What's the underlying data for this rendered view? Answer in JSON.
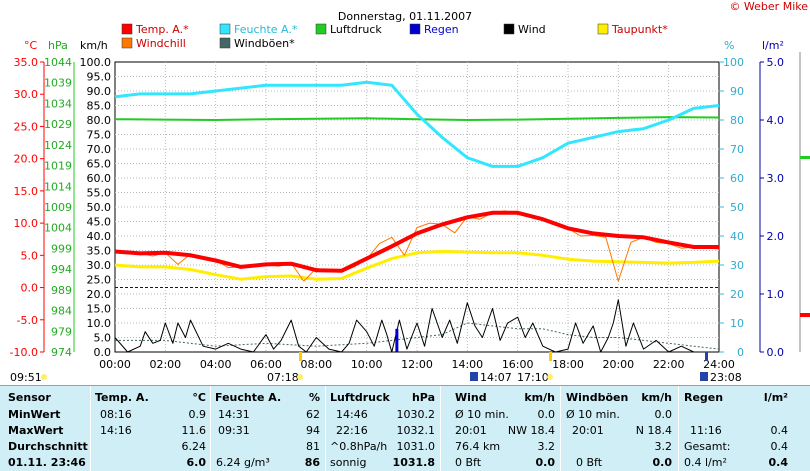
{
  "chart_data": {
    "type": "line",
    "title": "Donnerstag, 01.11.2007",
    "credit": "© Weber Mike",
    "axis_labels": {
      "temp": "°C",
      "pressure": "hPa",
      "wind": "km/h",
      "humidity": "%",
      "rain": "l/m²"
    },
    "temp_ticks": [
      "35.0",
      "30.0",
      "25.0",
      "20.0",
      "15.0",
      "10.0",
      "5.0",
      "0.0",
      "-5.0",
      "-10.0"
    ],
    "pressure_ticks": [
      "1044",
      "1039",
      "1034",
      "1029",
      "1024",
      "1019",
      "1014",
      "1009",
      "1004",
      "999",
      "994",
      "989",
      "984",
      "979",
      "974"
    ],
    "wind_ticks": [
      "100.0",
      "95.0",
      "90.0",
      "85.0",
      "80.0",
      "75.0",
      "70.0",
      "65.0",
      "60.0",
      "55.0",
      "50.0",
      "45.0",
      "40.0",
      "35.0",
      "30.0",
      "25.0",
      "20.0",
      "15.0",
      "10.0",
      "5.0",
      "0.0"
    ],
    "humidity_ticks": [
      "100",
      "90",
      "80",
      "70",
      "60",
      "50",
      "40",
      "30",
      "20",
      "10",
      "0"
    ],
    "rain_ticks": [
      "5.0",
      "4.0",
      "3.0",
      "2.0",
      "1.0",
      "0.0"
    ],
    "x_ticks": [
      "00:00",
      "02:00",
      "04:00",
      "06:00",
      "08:00",
      "10:00",
      "12:00",
      "14:00",
      "16:00",
      "18:00",
      "20:00",
      "22:00",
      "24:00"
    ],
    "legend": [
      {
        "label": "Temp. A.*",
        "color": "#ff0000"
      },
      {
        "label": "Feuchte A.*",
        "color": "#33e6ff"
      },
      {
        "label": "Luftdruck",
        "color": "#22cc22"
      },
      {
        "label": "Regen",
        "color": "#0000cc"
      },
      {
        "label": "Wind",
        "color": "#000000"
      },
      {
        "label": "Taupunkt*",
        "color": "#ffee00"
      },
      {
        "label": "Windchill",
        "color": "#ff7700"
      },
      {
        "label": "Windböen*",
        "color": "#446666"
      }
    ],
    "ylim_temp": [
      -10,
      35
    ],
    "ylim_humidity": [
      0,
      100
    ],
    "ylim_rain": [
      0,
      5
    ],
    "series": [
      {
        "name": "Temp. A.*",
        "unit": "°C",
        "color": "#ff0000",
        "x": [
          0,
          1,
          2,
          3,
          4,
          5,
          6,
          7,
          8,
          9,
          10,
          11,
          12,
          13,
          14,
          15,
          16,
          17,
          18,
          19,
          20,
          21,
          22,
          23,
          24
        ],
        "y": [
          5.6,
          5.3,
          5.4,
          5.0,
          4.2,
          3.2,
          3.6,
          3.7,
          2.7,
          2.6,
          4.5,
          6.4,
          8.4,
          9.8,
          10.9,
          11.6,
          11.6,
          10.6,
          9.2,
          8.4,
          8.0,
          7.8,
          7.0,
          6.3,
          6.3
        ]
      },
      {
        "name": "Feuchte A.*",
        "unit": "%",
        "color": "#33e6ff",
        "x": [
          0,
          1,
          2,
          3,
          4,
          5,
          6,
          7,
          8,
          9,
          10,
          11,
          12,
          13,
          14,
          15,
          16,
          17,
          18,
          19,
          20,
          21,
          22,
          23,
          24
        ],
        "y": [
          88,
          89,
          89,
          89,
          90,
          91,
          92,
          92,
          92,
          92,
          93,
          92,
          82,
          74,
          67,
          64,
          64,
          67,
          72,
          74,
          76,
          77,
          80,
          84,
          85
        ]
      },
      {
        "name": "Luftdruck",
        "unit": "hPa",
        "color": "#22cc22",
        "x": [
          0,
          2,
          4,
          6,
          8,
          10,
          12,
          14,
          16,
          18,
          20,
          22,
          24
        ],
        "y": [
          1030.2,
          1030.1,
          1030.0,
          1030.2,
          1030.3,
          1030.4,
          1030.2,
          1030.0,
          1030.1,
          1030.3,
          1030.5,
          1030.7,
          1030.6
        ]
      },
      {
        "name": "Taupunkt*",
        "unit": "°C",
        "color": "#ffee00",
        "x": [
          0,
          1,
          2,
          3,
          4,
          5,
          6,
          7,
          8,
          9,
          10,
          11,
          12,
          13,
          14,
          15,
          16,
          17,
          18,
          19,
          20,
          21,
          22,
          23,
          24
        ],
        "y": [
          3.5,
          3.2,
          3.2,
          2.8,
          2.0,
          1.3,
          1.7,
          1.8,
          1.3,
          1.4,
          3.0,
          4.5,
          5.4,
          5.6,
          5.5,
          5.4,
          5.4,
          5.0,
          4.4,
          4.1,
          4.0,
          3.9,
          3.8,
          3.9,
          4.1
        ]
      },
      {
        "name": "Windchill",
        "unit": "°C",
        "color": "#ff7700",
        "x": [
          0,
          0.5,
          1,
          1.5,
          2,
          2.5,
          3,
          3.5,
          4,
          4.5,
          5,
          5.5,
          6,
          6.5,
          7,
          7.5,
          8,
          8.5,
          9,
          9.5,
          10,
          10.5,
          11,
          11.5,
          12,
          12.5,
          13,
          13.5,
          14,
          14.5,
          15,
          15.5,
          16,
          16.5,
          17,
          17.5,
          18,
          18.5,
          19,
          19.5,
          20,
          20.5,
          21,
          21.5,
          22,
          22.5,
          23,
          23.5,
          24
        ],
        "y": [
          5.6,
          5.3,
          5.3,
          4.9,
          5.4,
          3.6,
          5.2,
          4.8,
          4.2,
          3.1,
          3.2,
          3.5,
          3.6,
          3.3,
          3.8,
          1.0,
          3.0,
          2.6,
          2.4,
          3.2,
          4.4,
          6.8,
          7.8,
          5.0,
          9.3,
          10.0,
          9.8,
          8.5,
          11.0,
          10.6,
          11.6,
          11.9,
          11.4,
          11.0,
          10.8,
          10.0,
          9.2,
          8.0,
          8.1,
          7.8,
          1.0,
          7.0,
          7.8,
          7.0,
          6.8,
          6.1,
          6.3,
          6.1,
          6.0
        ]
      },
      {
        "name": "Wind",
        "unit": "km/h",
        "color": "#000000",
        "x": [
          0,
          0.5,
          1,
          1.2,
          1.5,
          1.8,
          2,
          2.3,
          2.5,
          2.8,
          3,
          3.5,
          4,
          4.5,
          5,
          5.5,
          6,
          6.3,
          6.6,
          7,
          7.3,
          7.6,
          8,
          8.5,
          9,
          9.3,
          9.6,
          10,
          10.3,
          10.6,
          10.8,
          11,
          11.3,
          11.6,
          12,
          12.3,
          12.6,
          13,
          13.3,
          13.6,
          14,
          14.3,
          14.6,
          15,
          15.3,
          15.6,
          16,
          16.3,
          16.6,
          17,
          17.5,
          18,
          18.3,
          18.6,
          19,
          19.3,
          19.6,
          19.8,
          20,
          20.3,
          20.6,
          21,
          21.5,
          22,
          22.5,
          23,
          23.5,
          24
        ],
        "y": [
          5,
          0,
          2,
          7,
          3,
          4,
          10,
          3,
          10,
          5,
          11,
          2,
          1,
          3,
          1,
          0,
          6,
          1,
          4,
          11,
          2,
          0,
          5,
          1,
          0,
          3,
          11,
          7,
          2,
          11,
          6,
          0,
          11,
          1,
          10,
          2,
          15,
          5,
          11,
          3,
          17,
          9,
          5,
          15,
          4,
          10,
          12,
          5,
          10,
          2,
          0,
          1,
          10,
          3,
          9,
          0,
          5,
          10,
          18,
          2,
          10,
          1,
          4,
          0,
          2,
          0,
          0,
          0
        ]
      },
      {
        "name": "Windböen*",
        "unit": "km/h",
        "color": "#446666",
        "x": [
          0,
          2,
          4,
          6,
          8,
          10,
          11,
          12,
          13,
          14,
          15,
          16,
          17,
          18,
          19,
          20,
          21,
          22,
          23,
          24
        ],
        "y": [
          4,
          4,
          2,
          3,
          2,
          3,
          4,
          5,
          6,
          10,
          9,
          8,
          8,
          6,
          5,
          5,
          4,
          3,
          2,
          1
        ]
      },
      {
        "name": "Regen",
        "unit": "l/m²",
        "color": "#0000cc",
        "x": [
          11.2
        ],
        "y": [
          0.4
        ]
      }
    ]
  },
  "markers": {
    "sunrise": "07:18",
    "sunset": "17:10",
    "moonrise": "09:51",
    "moon1": "14:07",
    "moon2": "23:08"
  },
  "table": {
    "headers": [
      "Sensor",
      "Temp. A.",
      "°C",
      "Feuchte A.",
      "%",
      "Luftdruck",
      "hPa",
      "Wind",
      "km/h",
      "Windböen",
      "km/h",
      "Regen",
      "l/m²"
    ],
    "min": {
      "label": "MinWert",
      "temp_time": "08:16",
      "temp": "0.9",
      "hum_time": "14:31",
      "hum": "62",
      "press_time": "14:46",
      "press": "1030.2",
      "wind_label": "Ø 10 min.",
      "wind": "0.0",
      "gust_label": "Ø 10 min.",
      "gust": "0.0"
    },
    "max": {
      "label": "MaxWert",
      "temp_time": "14:16",
      "temp": "11.6",
      "hum_time": "09:31",
      "hum": "94",
      "press_time": "22:16",
      "press": "1032.1",
      "wind_time": "20:01",
      "wind": "NW 18.4",
      "gust_time": "20:01",
      "gust": "N 18.4",
      "rain_time": "11:16",
      "rain": "0.4"
    },
    "avg": {
      "label": "Durchschnitt",
      "temp": "6.24",
      "hum": "81",
      "press_trend": "^0.8hPa/h",
      "press": "1031.0",
      "wind_dist": "76.4 km",
      "wind": "3.2",
      "gust": "3.2",
      "rain_label": "Gesamt:",
      "rain": "0.4"
    },
    "cur": {
      "label": "01.11. 23:46",
      "temp": "6.0",
      "hum_abs": "6.24 g/m³",
      "hum": "86",
      "press_word": "sonnig",
      "press": "1031.8",
      "wind_bft": "0 Bft",
      "wind": "0.0",
      "gust_bft": "0 Bft",
      "gust": "0.0",
      "rain_total": "0.4 l/m²",
      "rain": "0.4"
    }
  }
}
